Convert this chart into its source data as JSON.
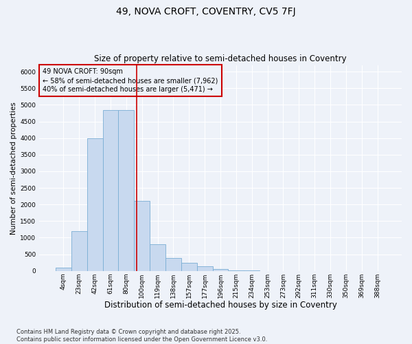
{
  "title": "49, NOVA CROFT, COVENTRY, CV5 7FJ",
  "subtitle": "Size of property relative to semi-detached houses in Coventry",
  "xlabel": "Distribution of semi-detached houses by size in Coventry",
  "ylabel": "Number of semi-detached properties",
  "categories": [
    "4sqm",
    "23sqm",
    "42sqm",
    "61sqm",
    "80sqm",
    "100sqm",
    "119sqm",
    "138sqm",
    "157sqm",
    "177sqm",
    "196sqm",
    "215sqm",
    "234sqm",
    "253sqm",
    "273sqm",
    "292sqm",
    "311sqm",
    "330sqm",
    "350sqm",
    "369sqm",
    "388sqm"
  ],
  "values": [
    100,
    1200,
    4000,
    4850,
    4850,
    2100,
    800,
    380,
    240,
    130,
    60,
    10,
    5,
    0,
    0,
    0,
    0,
    0,
    0,
    0,
    0
  ],
  "bar_color": "#c8d9ef",
  "bar_edgecolor": "#7aadd4",
  "vline_color": "#cc0000",
  "vline_x_index": 4.65,
  "annotation_text": "49 NOVA CROFT: 90sqm\n← 58% of semi-detached houses are smaller (7,962)\n40% of semi-detached houses are larger (5,471) →",
  "annotation_box_edgecolor": "#cc0000",
  "ylim_max": 6200,
  "ytick_step": 500,
  "bg_color": "#eef2f9",
  "grid_color": "#ffffff",
  "footer_text": "Contains HM Land Registry data © Crown copyright and database right 2025.\nContains public sector information licensed under the Open Government Licence v3.0.",
  "title_fontsize": 10,
  "subtitle_fontsize": 8.5,
  "xlabel_fontsize": 8.5,
  "ylabel_fontsize": 7.5,
  "tick_fontsize": 6.5,
  "annotation_fontsize": 7,
  "footer_fontsize": 6
}
